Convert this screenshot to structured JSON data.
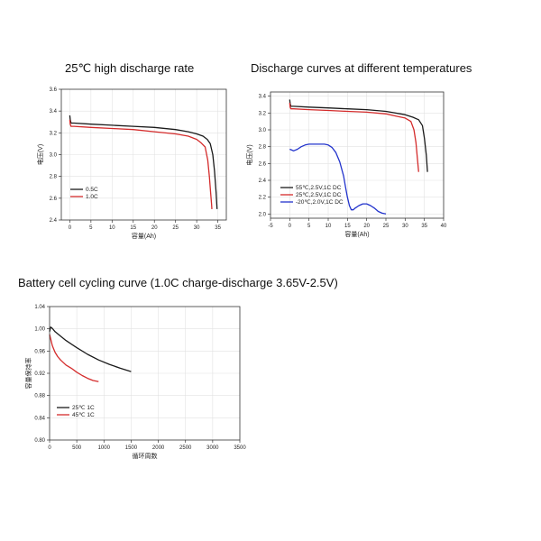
{
  "chart_data": [
    {
      "type": "line",
      "title": "25℃ high discharge rate",
      "xlabel": "容量(Ah)",
      "ylabel": "电压(V)",
      "xlim": [
        -2,
        37
      ],
      "ylim": [
        2.4,
        3.6
      ],
      "xticks": [
        "0",
        "5",
        "10",
        "15",
        "20",
        "25",
        "30",
        "35"
      ],
      "xtick_values": [
        0,
        5,
        10,
        15,
        20,
        25,
        30,
        35
      ],
      "yticks": [
        "2.4",
        "2.6",
        "2.8",
        "3.0",
        "3.2",
        "3.4",
        "3.6"
      ],
      "ytick_values": [
        2.4,
        2.6,
        2.8,
        3.0,
        3.2,
        3.4,
        3.6
      ],
      "grid": true,
      "legend_position": "bottom-left",
      "series": [
        {
          "name": "0.5C",
          "color": "#1a1a1a",
          "x": [
            0,
            0.1,
            0.3,
            1,
            5,
            10,
            15,
            20,
            25,
            28,
            30,
            31.5,
            32.5,
            33.2,
            33.8,
            34.2,
            34.6,
            34.8
          ],
          "y": [
            3.36,
            3.32,
            3.29,
            3.29,
            3.28,
            3.27,
            3.26,
            3.25,
            3.23,
            3.21,
            3.19,
            3.17,
            3.14,
            3.1,
            3.0,
            2.85,
            2.65,
            2.5
          ]
        },
        {
          "name": "1.0C",
          "color": "#d42b2b",
          "x": [
            0,
            0.1,
            0.3,
            1,
            5,
            10,
            15,
            20,
            25,
            28,
            30,
            31,
            32,
            32.6,
            33,
            33.3,
            33.5,
            33.6
          ],
          "y": [
            3.32,
            3.28,
            3.26,
            3.26,
            3.25,
            3.24,
            3.23,
            3.21,
            3.19,
            3.17,
            3.14,
            3.11,
            3.07,
            2.95,
            2.8,
            2.65,
            2.55,
            2.5
          ]
        }
      ]
    },
    {
      "type": "line",
      "title": "Discharge curves at different temperatures",
      "xlabel": "容量(Ah)",
      "ylabel": "电压(V)",
      "xlim": [
        -5,
        40
      ],
      "ylim": [
        1.95,
        3.45
      ],
      "xticks": [
        "-5",
        "0",
        "5",
        "10",
        "15",
        "20",
        "25",
        "30",
        "35",
        "40"
      ],
      "xtick_values": [
        -5,
        0,
        5,
        10,
        15,
        20,
        25,
        30,
        35,
        40
      ],
      "yticks": [
        "2.0",
        "2.2",
        "2.4",
        "2.6",
        "2.8",
        "3.0",
        "3.2",
        "3.4"
      ],
      "ytick_values": [
        2.0,
        2.2,
        2.4,
        2.6,
        2.8,
        3.0,
        3.2,
        3.4
      ],
      "grid": true,
      "legend_position": "bottom-left",
      "series": [
        {
          "name": "55℃,2.5V,1C DC",
          "color": "#1a1a1a",
          "x": [
            0,
            0.1,
            0.3,
            1,
            5,
            10,
            15,
            20,
            25,
            30,
            32,
            33.5,
            34.5,
            35,
            35.5,
            35.8
          ],
          "y": [
            3.36,
            3.31,
            3.28,
            3.28,
            3.27,
            3.26,
            3.25,
            3.24,
            3.22,
            3.18,
            3.15,
            3.12,
            3.05,
            2.9,
            2.7,
            2.5
          ]
        },
        {
          "name": "25℃,2.5V,1C DC",
          "color": "#d42b2b",
          "x": [
            0,
            0.1,
            0.3,
            1,
            5,
            10,
            15,
            20,
            25,
            28,
            30,
            31.5,
            32.3,
            32.8,
            33.2,
            33.5
          ],
          "y": [
            3.32,
            3.27,
            3.25,
            3.25,
            3.24,
            3.23,
            3.22,
            3.21,
            3.19,
            3.16,
            3.14,
            3.1,
            3.0,
            2.85,
            2.65,
            2.5
          ]
        },
        {
          "name": "-20℃,2.0V,1C DC",
          "color": "#2233cc",
          "x": [
            0,
            0.5,
            1,
            2,
            3,
            4,
            5,
            6,
            7,
            8,
            9,
            10,
            11,
            12,
            13,
            14,
            14.5,
            15,
            15.5,
            16,
            16.5,
            17,
            18,
            19,
            20,
            21,
            22,
            23,
            24,
            25
          ],
          "y": [
            2.77,
            2.76,
            2.75,
            2.77,
            2.8,
            2.82,
            2.83,
            2.83,
            2.83,
            2.83,
            2.83,
            2.82,
            2.79,
            2.73,
            2.62,
            2.45,
            2.32,
            2.2,
            2.1,
            2.05,
            2.05,
            2.07,
            2.1,
            2.12,
            2.12,
            2.1,
            2.07,
            2.03,
            2.01,
            2.0
          ]
        }
      ]
    },
    {
      "type": "line",
      "title": "Battery cell cycling curve (1.0C charge-discharge 3.65V-2.5V)",
      "xlabel": "循环周数",
      "ylabel": "容量保持率",
      "xlim": [
        0,
        3500
      ],
      "ylim": [
        0.8,
        1.04
      ],
      "xticks": [
        "0",
        "500",
        "1000",
        "1500",
        "2000",
        "2500",
        "3000",
        "3500"
      ],
      "xtick_values": [
        0,
        500,
        1000,
        1500,
        2000,
        2500,
        3000,
        3500
      ],
      "yticks": [
        "0.80",
        "0.84",
        "0.88",
        "0.92",
        "0.96",
        "1.00",
        "1.04"
      ],
      "ytick_values": [
        0.8,
        0.84,
        0.88,
        0.92,
        0.96,
        1.0,
        1.04
      ],
      "grid": true,
      "legend_position": "bottom-left",
      "series": [
        {
          "name": "25℃ 1C",
          "color": "#1a1a1a",
          "x": [
            0,
            20,
            50,
            100,
            200,
            300,
            500,
            700,
            900,
            1100,
            1300,
            1500
          ],
          "y": [
            0.995,
            1.003,
            1.001,
            0.995,
            0.987,
            0.979,
            0.966,
            0.954,
            0.944,
            0.936,
            0.929,
            0.923
          ]
        },
        {
          "name": "45℃ 1C",
          "color": "#d42b2b",
          "x": [
            0,
            20,
            50,
            100,
            150,
            200,
            300,
            400,
            500,
            600,
            700,
            800,
            900
          ],
          "y": [
            0.99,
            0.982,
            0.97,
            0.958,
            0.95,
            0.944,
            0.935,
            0.929,
            0.922,
            0.916,
            0.911,
            0.907,
            0.905
          ]
        }
      ]
    }
  ]
}
